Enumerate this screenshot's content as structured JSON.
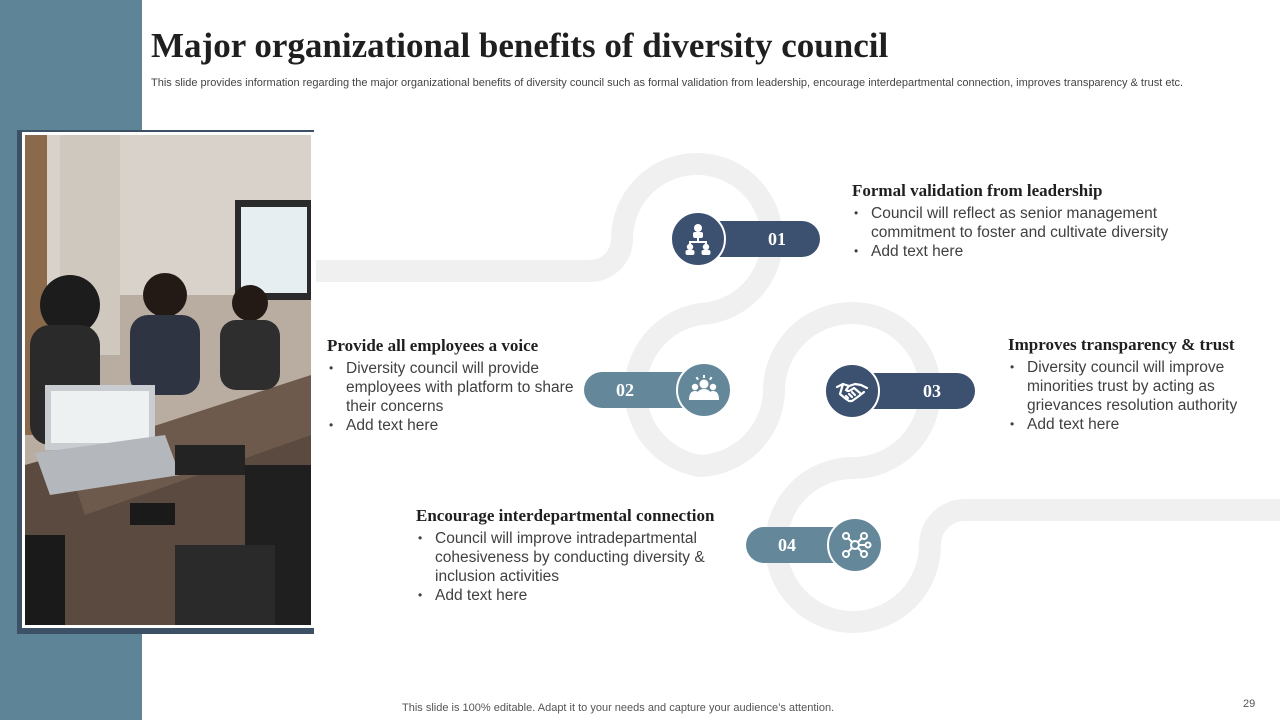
{
  "slide": {
    "title": "Major organizational benefits of diversity council",
    "subtitle": "This slide provides information regarding the major organizational benefits of diversity council such as formal validation from leadership, encourage interdepartmental connection, improves transparency & trust etc.",
    "footer": "This slide is 100% editable. Adapt it to your needs and capture your audience’s attention.",
    "page_number": "29"
  },
  "colors": {
    "band": "#5e8597",
    "dark_navy": "#3c5170",
    "steel_blue": "#64889a",
    "path_gray": "#f0f0f0"
  },
  "benefits": [
    {
      "number": "01",
      "icon": "org-chart-icon",
      "heading": "Formal validation from leadership",
      "bullets": [
        "Council will reflect as senior management commitment to foster and cultivate diversity",
        "Add text here"
      ]
    },
    {
      "number": "02",
      "icon": "team-group-icon",
      "heading": "Provide all employees a voice",
      "bullets": [
        "Diversity council will provide employees with platform to share their concerns",
        "Add text here"
      ]
    },
    {
      "number": "03",
      "icon": "handshake-icon",
      "heading": "Improves transparency & trust",
      "bullets": [
        "Diversity council will improve minorities trust by acting as grievances resolution authority",
        "Add text here"
      ]
    },
    {
      "number": "04",
      "icon": "network-icon",
      "heading": "Encourage interdepartmental connection",
      "bullets": [
        "Council will improve intradepartmental cohesiveness by conducting diversity & inclusion activities",
        "Add text here"
      ]
    }
  ]
}
